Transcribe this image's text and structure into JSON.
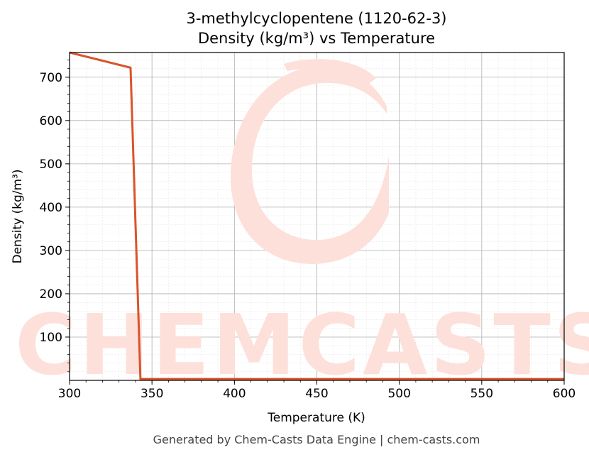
{
  "watermark": {
    "text": "CHEMCASTS",
    "logo": "chem-casts-c-logo-icon"
  },
  "footer": "Generated by Chem-Casts Data Engine | chem-casts.com",
  "chart_data": {
    "type": "line",
    "title": "3-methylcyclopentene (1120-62-3)",
    "subtitle": "Density (kg/m³) vs Temperature",
    "xlabel": "Temperature (K)",
    "ylabel": "Density (kg/m³)",
    "xlim": [
      300,
      600
    ],
    "ylim": [
      0,
      757
    ],
    "xticks": [
      300,
      350,
      400,
      450,
      500,
      550,
      600
    ],
    "yticks": [
      100,
      200,
      300,
      400,
      500,
      600,
      700
    ],
    "grid": true,
    "series": [
      {
        "color": "#d9542a",
        "x": [
          300,
          337,
          343,
          600
        ],
        "y": [
          757,
          722,
          3,
          3
        ]
      }
    ]
  }
}
